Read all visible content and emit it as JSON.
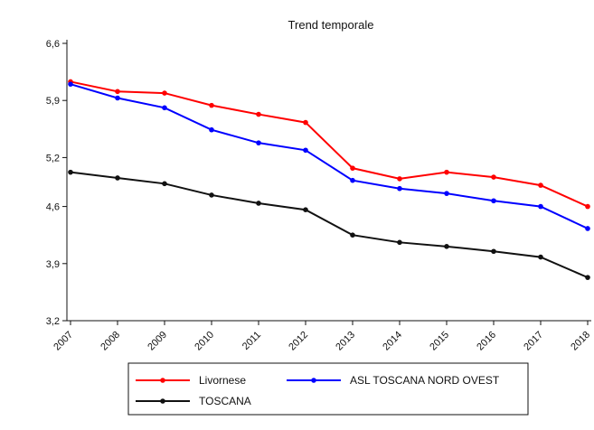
{
  "chart_data": {
    "type": "line",
    "title": "Trend temporale",
    "xlabel": "",
    "ylabel": "",
    "x": [
      "2007",
      "2008",
      "2009",
      "2010",
      "2011",
      "2012",
      "2013",
      "2014",
      "2015",
      "2016",
      "2017",
      "2018"
    ],
    "yticks": [
      "3,2",
      "3,9",
      "4,6",
      "5,2",
      "5,9",
      "6,6"
    ],
    "yticks_values": [
      3.2,
      3.9,
      4.6,
      5.2,
      5.9,
      6.6
    ],
    "ylim": [
      3.2,
      6.6
    ],
    "grid": false,
    "legend_position": "bottom",
    "series": [
      {
        "name": "Livornese",
        "color": "#ff0000",
        "values": [
          6.13,
          6.01,
          5.99,
          5.84,
          5.73,
          5.63,
          5.07,
          4.94,
          5.02,
          4.96,
          4.86,
          4.6
        ]
      },
      {
        "name": "ASL TOSCANA NORD OVEST",
        "color": "#0000ff",
        "values": [
          6.1,
          5.93,
          5.81,
          5.54,
          5.38,
          5.29,
          4.92,
          4.82,
          4.76,
          4.67,
          4.6,
          4.33
        ]
      },
      {
        "name": "TOSCANA",
        "color": "#111111",
        "values": [
          5.02,
          4.95,
          4.88,
          4.74,
          4.64,
          4.56,
          4.25,
          4.16,
          4.11,
          4.05,
          3.98,
          3.73
        ]
      }
    ]
  }
}
